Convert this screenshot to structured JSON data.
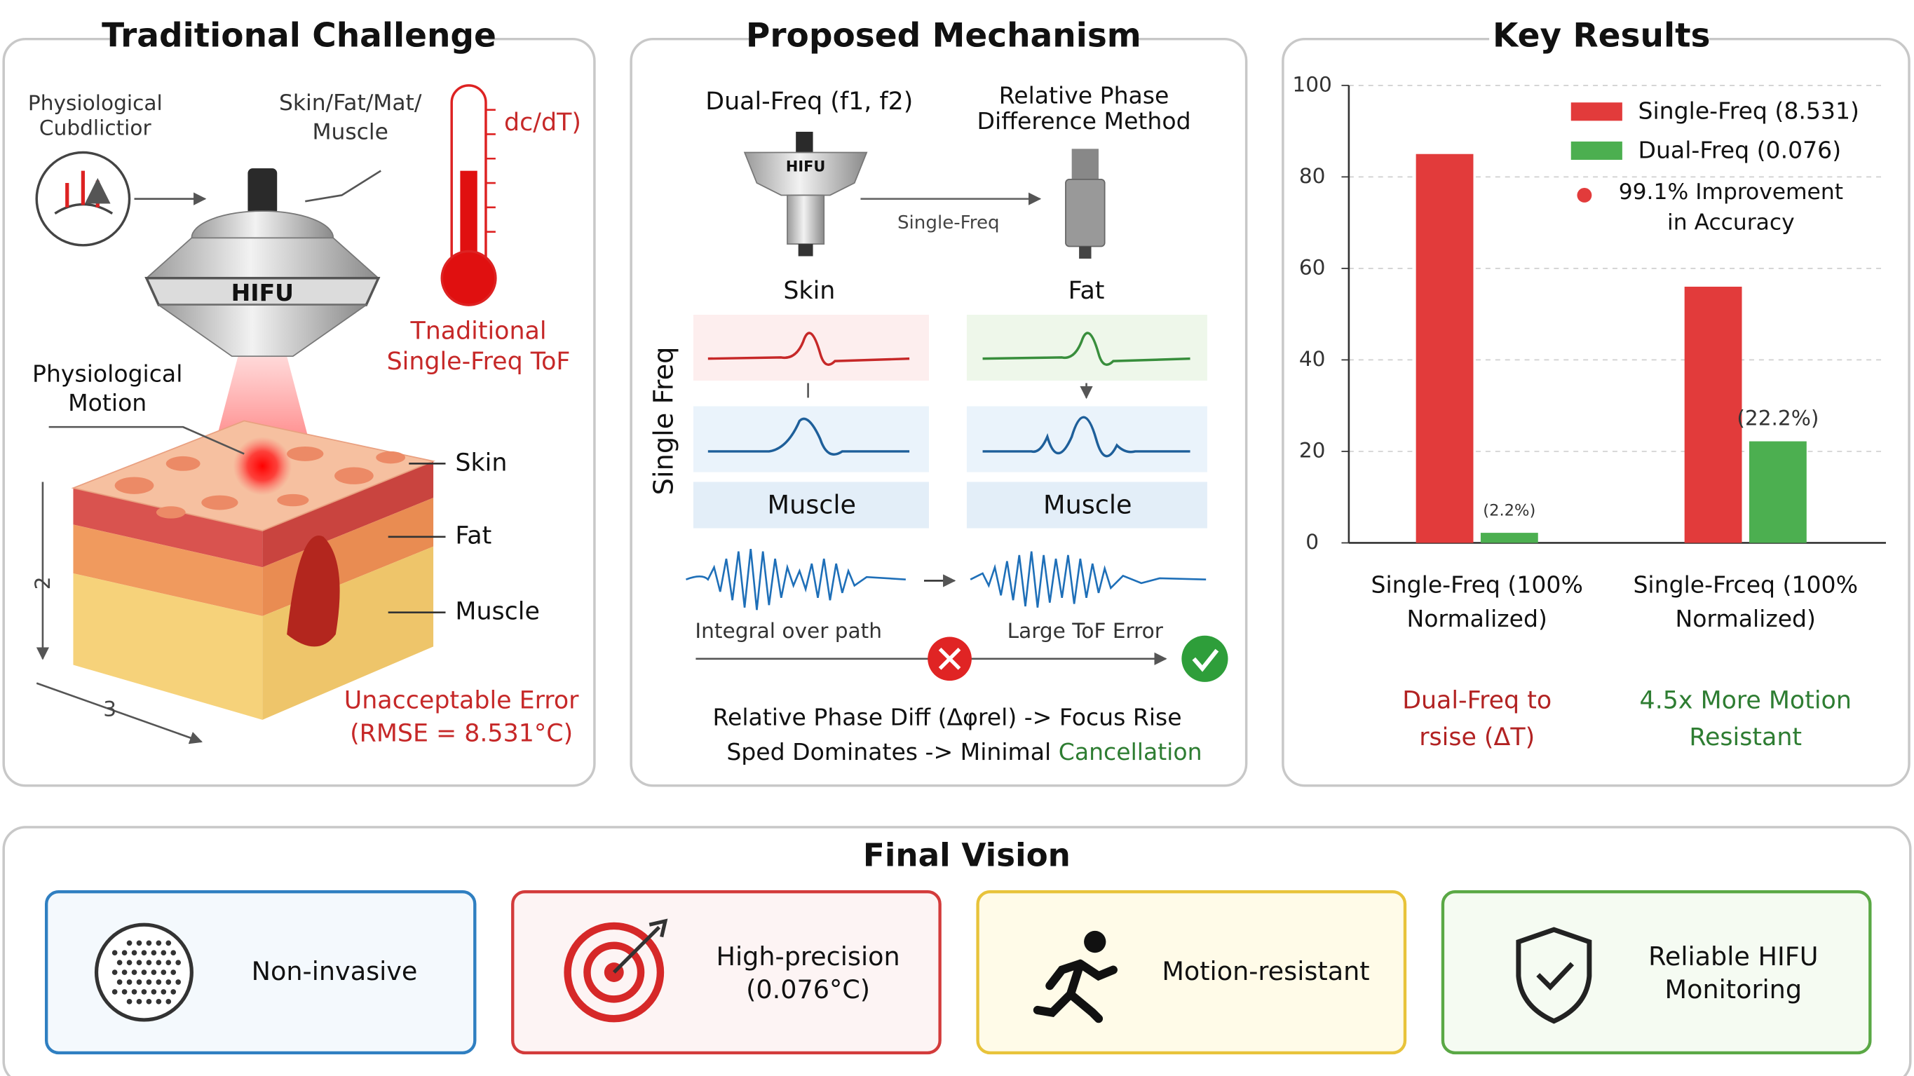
{
  "traditional_challenge": {
    "title": "Traditional Challenge",
    "icon_label": [
      "Physiological",
      "Cubdlictior"
    ],
    "tissue_label": [
      "Skin/Fat/Mat/",
      "Muscle"
    ],
    "transducer": "HIFU",
    "thermo_label": "dc/dT)",
    "method": [
      "Tnaditional",
      "Single-Freq ToF"
    ],
    "motion": [
      "Physiological",
      "Motion"
    ],
    "layers": [
      "Skin",
      "Fat",
      "Muscle"
    ],
    "dims": [
      "2",
      "3"
    ],
    "error": [
      "Unacceptable Error",
      "(RMSE = 8.531°C)"
    ]
  },
  "proposed_mechanism": {
    "title": "Proposed Mechanism",
    "dual": "Dual-Freq (f1, f2)",
    "method": [
      "Relative Phase",
      "Difference Method"
    ],
    "transducer": "HIFU",
    "arrow_label": "Single-Freq",
    "columns": [
      "Skin",
      "Fat"
    ],
    "side_label": "Single Freq",
    "muscle": [
      "Muscle",
      "Muscle"
    ],
    "captions": [
      "Integral over path",
      "Large ToF Error"
    ],
    "summary_1": "Relative Phase Diff (Δφrel) -> Focus Rise",
    "summary_2": [
      "Sped Dominates -> Minimal ",
      "Cancellation"
    ]
  },
  "key_results": {
    "title": "Key Results",
    "chart_data": {
      "type": "bar",
      "categories": [
        [
          "Single-Freq (100%",
          "Normalized)"
        ],
        [
          "Single-Frceq (100%",
          "Normalized)"
        ]
      ],
      "series": [
        {
          "name": "Single-Freq (8.531)",
          "color": "#e23b3b",
          "values": [
            85,
            56
          ]
        },
        {
          "name": "Dual-Freq (0.076)",
          "color": "#4caf50",
          "values": [
            2.2,
            22.2
          ],
          "value_labels": [
            "(2.2%)",
            "(22.2%)"
          ]
        }
      ],
      "ylim": [
        0,
        100
      ],
      "yticks": [
        0,
        20,
        40,
        60,
        80,
        100
      ],
      "grid": true,
      "legend": "top-right",
      "annotation": {
        "text": [
          "99.1% Improvement",
          "in Accuracy"
        ],
        "color": "#e23b3b"
      },
      "notes": [
        {
          "text": [
            "Dual-Freq to",
            "rsise (ΔT)"
          ],
          "color": "#b22222"
        },
        {
          "text": [
            "4.5x More Motion",
            "Resistant"
          ],
          "color": "#2e7d32"
        }
      ]
    }
  },
  "final_vision": {
    "title": "Final Vision",
    "items": [
      [
        "Non-invasive"
      ],
      [
        "High-precision",
        "(0.076°C)"
      ],
      [
        "Motion-resistant"
      ],
      [
        "Reliable HIFU",
        "Monitoring"
      ]
    ]
  }
}
